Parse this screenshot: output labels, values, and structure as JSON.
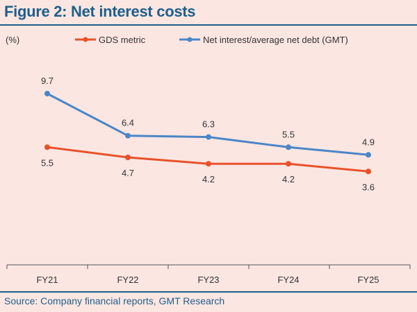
{
  "title": "Figure 2: Net interest costs",
  "source": "Source: Company financial reports, GMT Research",
  "colors": {
    "title": "#1f5f8b",
    "background": "#fbe6e1",
    "gds": "#e8512a",
    "gmt": "#4a86c8"
  },
  "chart_data": {
    "type": "line",
    "ylabel": "(%)",
    "categories": [
      "FY21",
      "FY22",
      "FY23",
      "FY24",
      "FY25"
    ],
    "ylim": [
      0,
      12
    ],
    "grid": false,
    "legend": "top",
    "series": [
      {
        "name": "GDS metric",
        "color": "#e8512a",
        "values": [
          5.5,
          4.7,
          4.2,
          4.2,
          3.6
        ]
      },
      {
        "name": "Net interest/average net debt (GMT)",
        "color": "#4a86c8",
        "values": [
          9.7,
          6.4,
          6.3,
          5.5,
          4.9
        ]
      }
    ]
  }
}
